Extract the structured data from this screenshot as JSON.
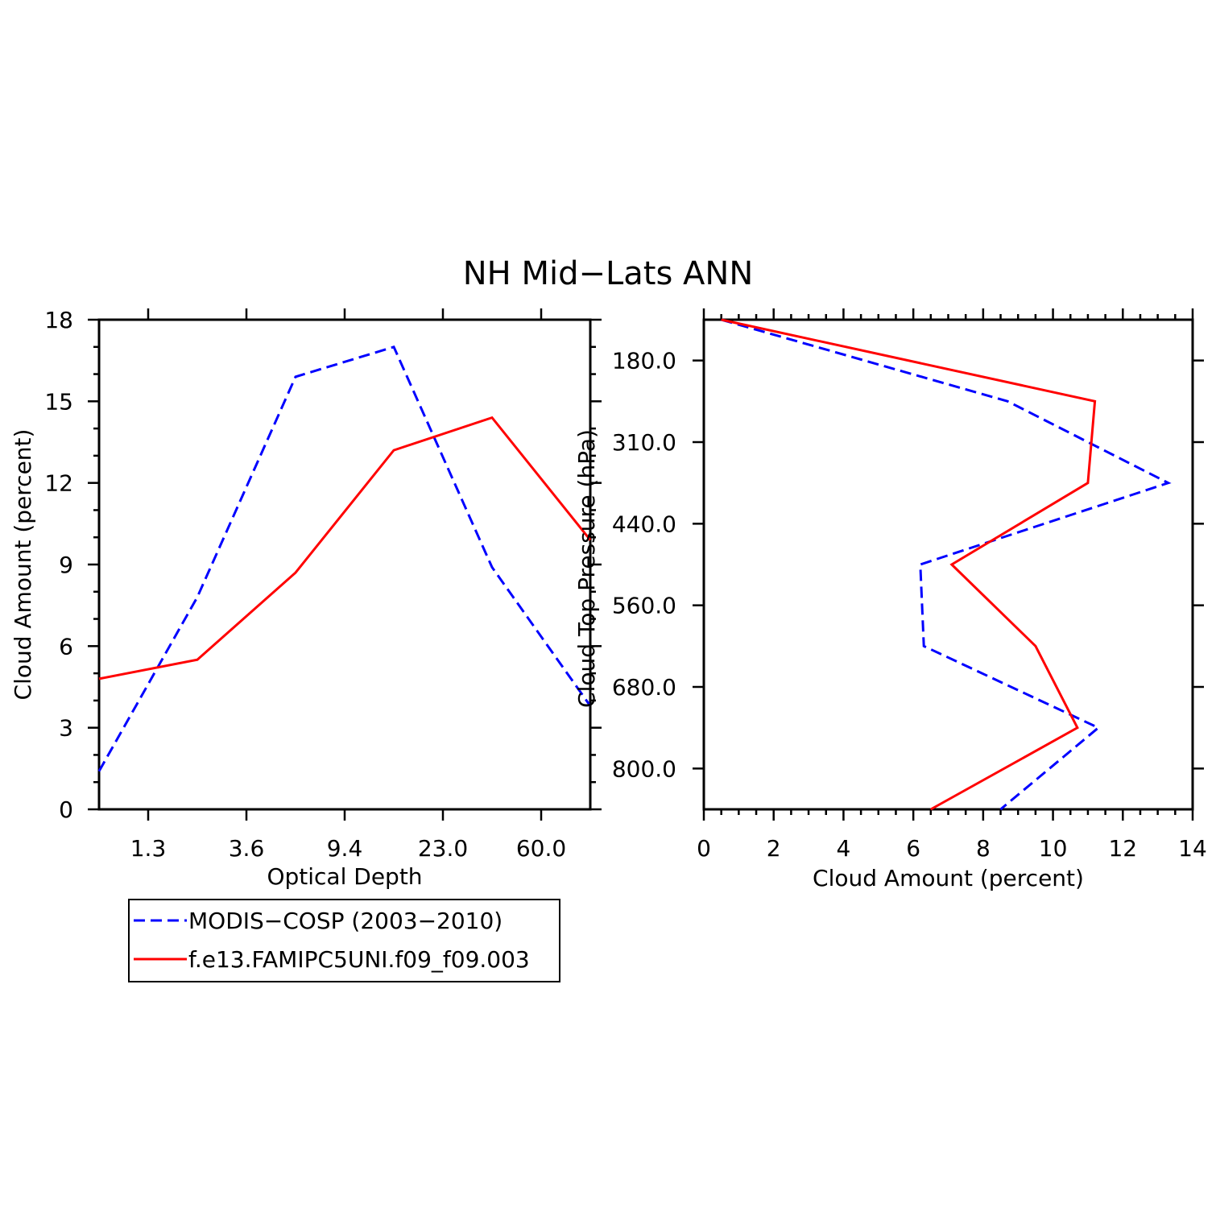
{
  "figure": {
    "title": "NH Mid−Lats ANN"
  },
  "colors": {
    "modis": "#0000ff",
    "model": "#ff0000",
    "axis": "#000000"
  },
  "legend": {
    "entries": [
      {
        "label": "MODIS−COSP (2003−2010)",
        "color": "#0000ff",
        "dash": "dashed"
      },
      {
        "label": "f.e13.FAMIPC5UNI.f09_f09.003",
        "color": "#ff0000",
        "dash": "solid"
      }
    ],
    "placement": "below-left-panel"
  },
  "chart_data": [
    {
      "type": "line",
      "xlabel": "Optical Depth",
      "ylabel": "Cloud Amount (percent)",
      "x_ticklabels": [
        "1.3",
        "3.6",
        "9.4",
        "23.0",
        "60.0"
      ],
      "x_bin_index": [
        0,
        1,
        2,
        3,
        4,
        5
      ],
      "ylim": [
        0,
        18
      ],
      "y_ticklabels": [
        "0",
        "3",
        "6",
        "9",
        "12",
        "15",
        "18"
      ],
      "series": [
        {
          "name": "MODIS−COSP (2003−2010)",
          "style": "dashed",
          "values": [
            1.4,
            7.8,
            15.9,
            17.0,
            8.9,
            3.8
          ]
        },
        {
          "name": "f.e13.FAMIPC5UNI.f09_f09.003",
          "style": "solid",
          "values": [
            4.8,
            5.5,
            8.7,
            13.2,
            14.4,
            9.9
          ]
        }
      ]
    },
    {
      "type": "line",
      "orientation": "vertical-profile",
      "xlabel": "Cloud Amount (percent)",
      "ylabel": "Cloud Top Pressure (hPa)",
      "xlim": [
        0,
        14
      ],
      "x_ticklabels": [
        "0",
        "2",
        "4",
        "6",
        "8",
        "10",
        "12",
        "14"
      ],
      "y_ticklabels": [
        "180.0",
        "310.0",
        "440.0",
        "560.0",
        "680.0",
        "800.0"
      ],
      "y_level_index": [
        0,
        1,
        2,
        3,
        4,
        5,
        6
      ],
      "series": [
        {
          "name": "MODIS−COSP (2003−2010)",
          "style": "dashed",
          "values": [
            0.5,
            8.7,
            13.3,
            6.2,
            6.3,
            11.3,
            8.5
          ]
        },
        {
          "name": "f.e13.FAMIPC5UNI.f09_f09.003",
          "style": "solid",
          "values": [
            0.5,
            11.2,
            11.0,
            7.1,
            9.5,
            10.7,
            6.5
          ]
        }
      ]
    }
  ]
}
